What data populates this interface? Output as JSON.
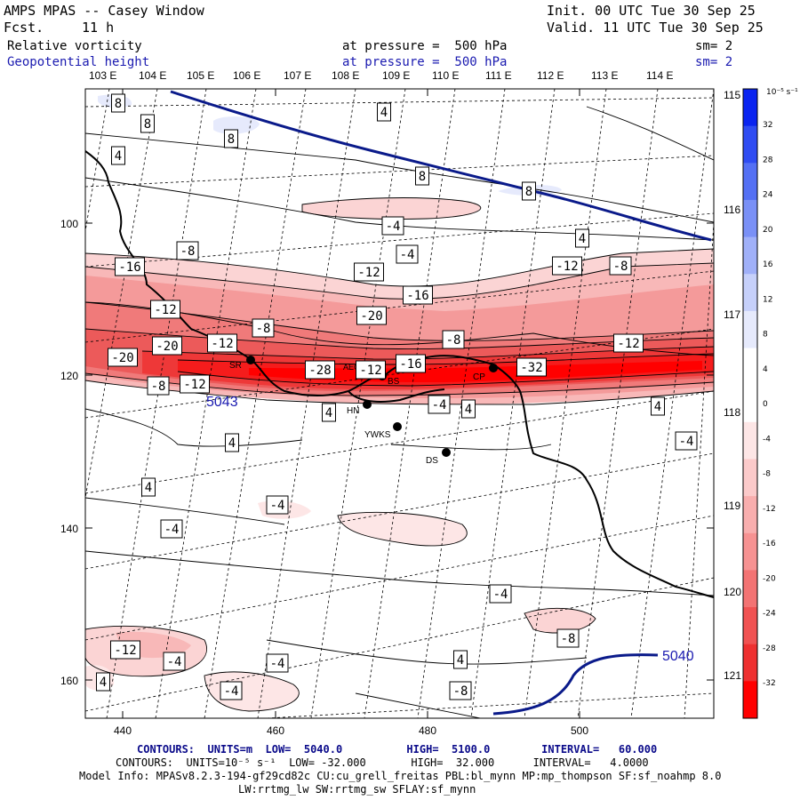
{
  "header": {
    "title": "AMPS MPAS -- Casey Window",
    "fcst_label": "Fcst.",
    "fcst_value": "11 h",
    "init": "Init. 00 UTC Tue 30 Sep 25",
    "valid": "Valid. 11 UTC Tue 30 Sep 25"
  },
  "fields": [
    {
      "name": "Relative vorticity",
      "level": "at pressure =  500 hPa",
      "sm": "sm= 2"
    },
    {
      "name": "Geopotential height",
      "level": "at pressure =  500 hPa",
      "sm": "sm= 2"
    }
  ],
  "axes": {
    "lon_top": [
      "103 E",
      "104 E",
      "105 E",
      "106 E",
      "107 E",
      "108 E",
      "109 E",
      "110 E",
      "111 E",
      "112 E",
      "113 E",
      "114 E"
    ],
    "lon_right": [
      "115 E",
      "116 E",
      "117 E",
      "118 E",
      "119 E",
      "120 E",
      "121 E"
    ],
    "y_ticks": [
      "100",
      "120",
      "140",
      "160"
    ],
    "x_ticks": [
      "440",
      "460",
      "480",
      "500"
    ]
  },
  "colorbar": {
    "unit": "10⁻⁵ s⁻¹",
    "labels": [
      "32",
      "28",
      "24",
      "20",
      "16",
      "12",
      "8",
      "4",
      "0",
      "-4",
      "-8",
      "-12",
      "-16",
      "-20",
      "-24",
      "-28",
      "-32"
    ],
    "colors": [
      "#0a24f0",
      "#2f4cf2",
      "#5470f4",
      "#7a90f6",
      "#a0b0f8",
      "#c6d0fa",
      "#e6eafc",
      "#ffffff",
      "#ffffff",
      "#fde6e6",
      "#fbcaca",
      "#f8aeae",
      "#f69292",
      "#f37373",
      "#f05252",
      "#ee3030",
      "#ff0000"
    ]
  },
  "stations": [
    {
      "code": "SR"
    },
    {
      "code": "AEGY"
    },
    {
      "code": "BS"
    },
    {
      "code": "HN"
    },
    {
      "code": "YWKS"
    },
    {
      "code": "DS"
    },
    {
      "code": "CP"
    }
  ],
  "contour_labels": [
    "8",
    "8",
    "8",
    "4",
    "8",
    "8",
    "4",
    "-4",
    "-4",
    "4",
    "-8",
    "-16",
    "-12",
    "-12",
    "-8",
    "-16",
    "-12",
    "-20",
    "-8",
    "-8",
    "-12",
    "-20",
    "-12",
    "-20",
    "-28",
    "-16",
    "-32",
    "-8",
    "-12",
    "-12",
    "4",
    "-4",
    "4",
    "4",
    "4",
    "-4",
    "4",
    "-4",
    "-4",
    "-4",
    "-8",
    "-12",
    "-4",
    "-4",
    "4",
    "4",
    "-8",
    "-4"
  ],
  "height_labels": [
    "5043",
    "5040"
  ],
  "footer": {
    "line1_contours": "CONTOURS:  UNITS=m  LOW=  5040.0          HIGH=  5100.0        INTERVAL=   60.000",
    "line2_contours": "CONTOURS:  UNITS=10⁻⁵ s⁻¹  LOW= -32.000       HIGH=  32.000      INTERVAL=   4.0000",
    "model_info": "Model Info: MPASv8.2.3-194-gf29cd82c CU:cu_grell_freitas PBL:bl_mynn MP:mp_thompson SF:sf_noahmp 8.0",
    "model_info2": "LW:rrtmg_lw SW:rrtmg_sw SFLAY:sf_mynn"
  }
}
